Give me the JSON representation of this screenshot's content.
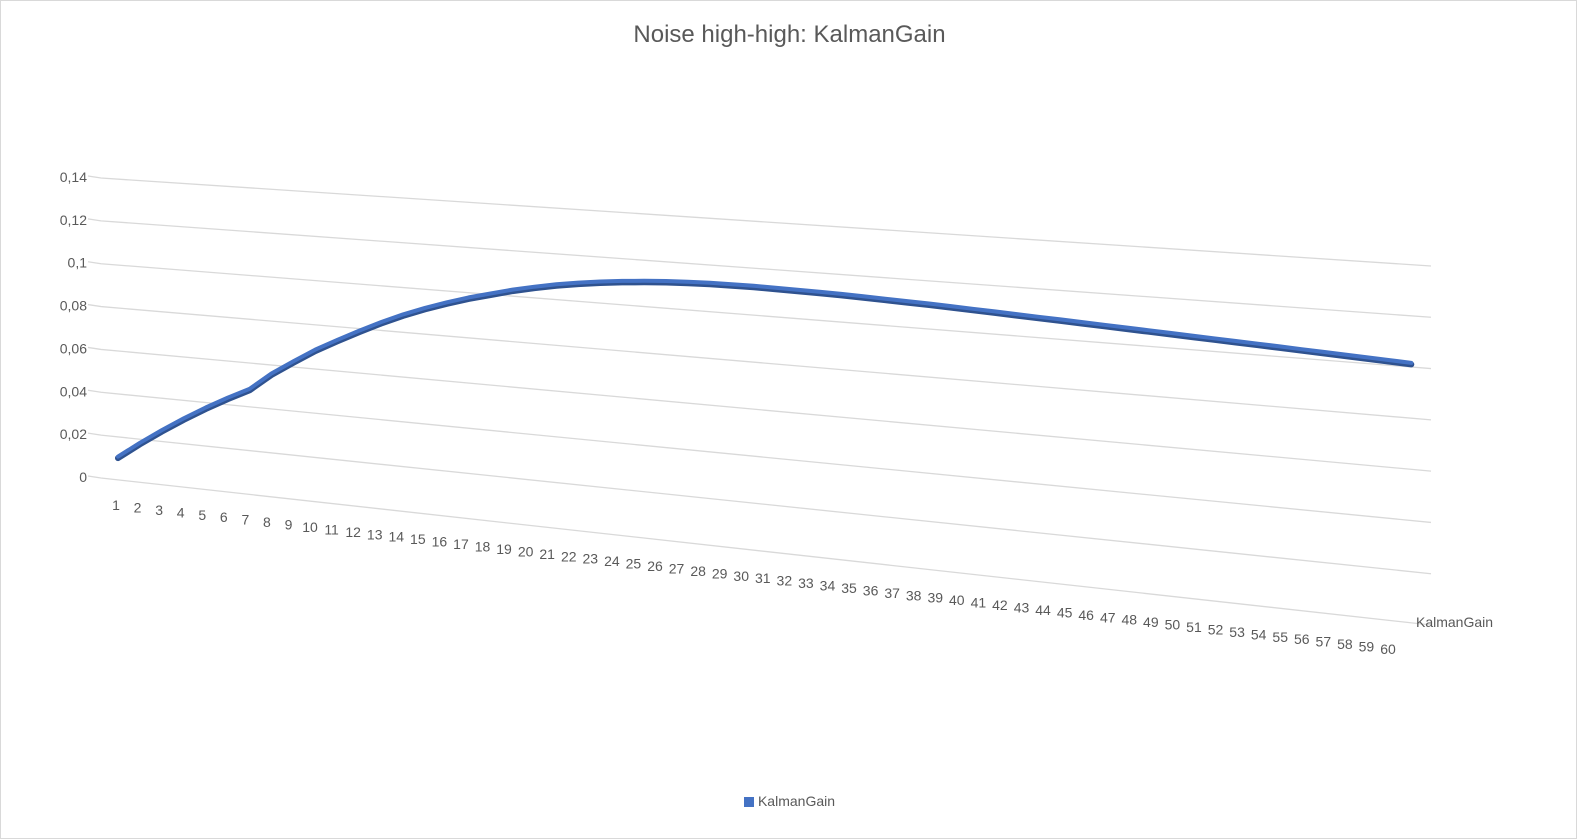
{
  "colors": {
    "series": "#4472c4",
    "series_shade": "#2f528f",
    "grid": "#d9d9d9",
    "text": "#595959"
  },
  "chart_data": {
    "type": "line",
    "title": "Noise high-high: KalmanGain",
    "x": [
      1,
      2,
      3,
      4,
      5,
      6,
      7,
      8,
      9,
      10,
      11,
      12,
      13,
      14,
      15,
      16,
      17,
      18,
      19,
      20,
      21,
      22,
      23,
      24,
      25,
      26,
      27,
      28,
      29,
      30,
      31,
      32,
      33,
      34,
      35,
      36,
      37,
      38,
      39,
      40,
      41,
      42,
      43,
      44,
      45,
      46,
      47,
      48,
      49,
      50,
      51,
      52,
      53,
      54,
      55,
      56,
      57,
      58,
      59,
      60
    ],
    "series": [
      {
        "name": "KalmanGain",
        "values": [
          0.01,
          0.0175,
          0.0245,
          0.031,
          0.037,
          0.0425,
          0.0475,
          0.0555,
          0.062,
          0.0682,
          0.0735,
          0.0785,
          0.0832,
          0.0875,
          0.0912,
          0.0945,
          0.0975,
          0.1,
          0.1025,
          0.1045,
          0.1063,
          0.1078,
          0.109,
          0.11,
          0.1108,
          0.1114,
          0.1118,
          0.1121,
          0.1122,
          0.1122,
          0.1121,
          0.112,
          0.1118,
          0.1116,
          0.1113,
          0.111,
          0.1107,
          0.1104,
          0.11,
          0.1096,
          0.1092,
          0.1088,
          0.1084,
          0.108,
          0.1076,
          0.1072,
          0.1068,
          0.1064,
          0.106,
          0.1056,
          0.1052,
          0.1048,
          0.1044,
          0.104,
          0.1036,
          0.1032,
          0.1028,
          0.1024,
          0.102,
          0.1016
        ]
      }
    ],
    "y_ticks": [
      "0",
      "0,02",
      "0,04",
      "0,06",
      "0,08",
      "0,1",
      "0,12",
      "0,14"
    ],
    "ylim": [
      0,
      0.14
    ],
    "depth_label": "KalmanGain",
    "legend": {
      "label": "KalmanGain",
      "position": "bottom"
    },
    "grid": true,
    "view": "3d"
  }
}
